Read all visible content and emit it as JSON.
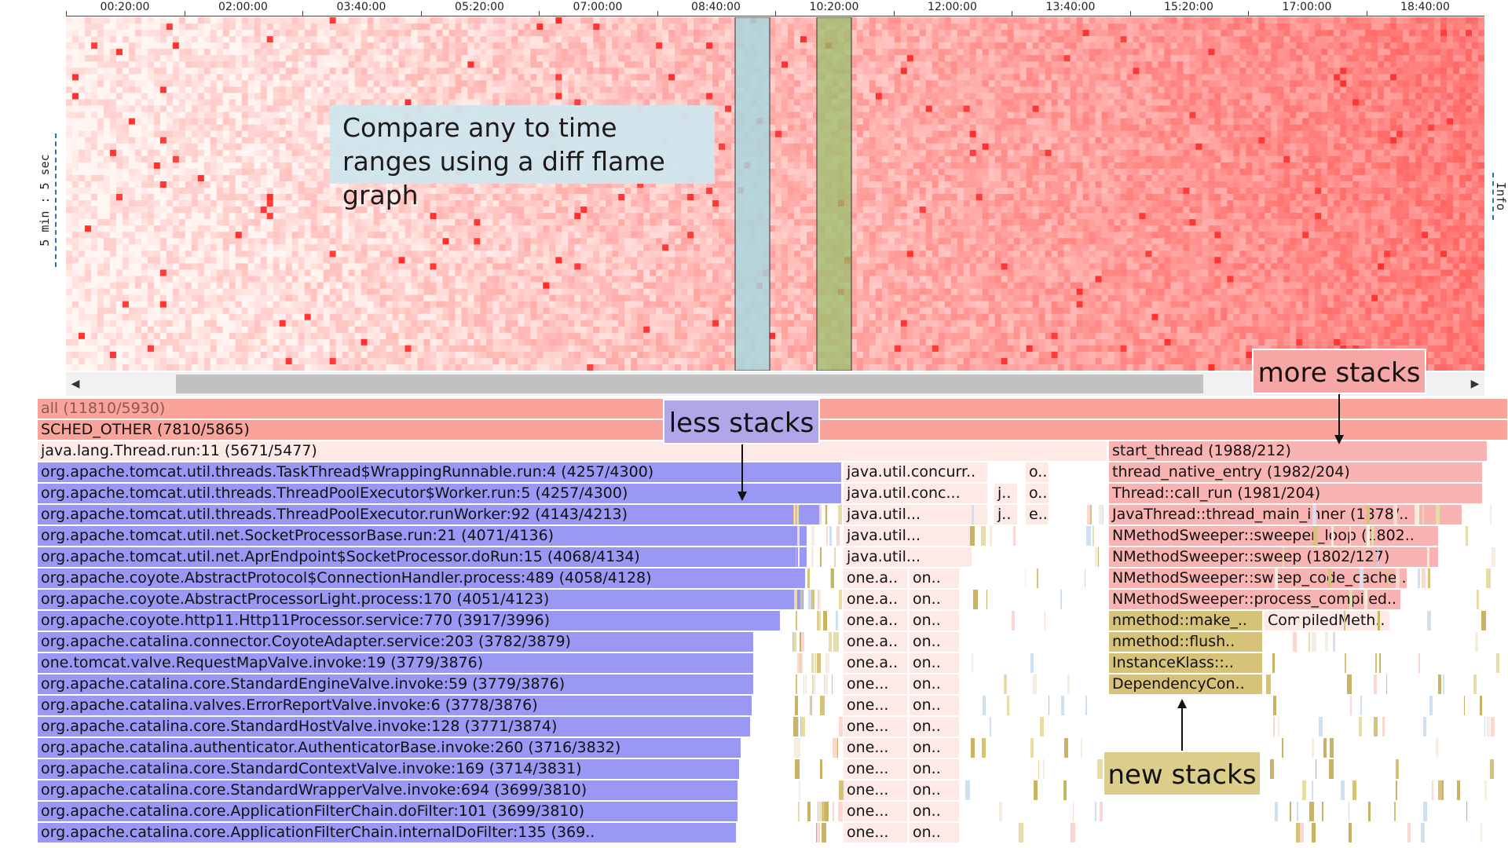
{
  "time_axis": {
    "ticks": [
      "00:20:00",
      "02:00:00",
      "03:40:00",
      "05:20:00",
      "07:00:00",
      "08:40:00",
      "10:20:00",
      "12:00:00",
      "13:40:00",
      "15:20:00",
      "17:00:00",
      "18:40:00"
    ]
  },
  "heatmap": {
    "y_label": "5 min : 5 sec",
    "info_tab": "Info"
  },
  "callouts": {
    "compare": "Compare any to time ranges using a diff flame graph",
    "less": "less stacks",
    "more": "more stacks",
    "new": "new stacks"
  },
  "colors": {
    "less_stacks": "#9a98f5",
    "more_stacks": "#f9b3b3",
    "new_stacks": "#d7c27a",
    "root": "#f9a39b",
    "neutral": "#fde9e6",
    "selection_a": "#a9d7de",
    "selection_b": "#98c26d"
  },
  "flame": {
    "frames": [
      "all (11810/5930)",
      "SCHED_OTHER (7810/5865)",
      "java.lang.Thread.run:11 (5671/5477)",
      "start_thread (1988/212)",
      "org.apache.tomcat.util.threads.TaskThread$WrappingRunnable.run:4 (4257/4300)",
      "java.util.concurr..",
      "o..",
      "thread_native_entry (1982/204)",
      "org.apache.tomcat.util.threads.ThreadPoolExecutor$Worker.run:5 (4257/4300)",
      "java.util.conc...",
      "j..",
      "o..",
      "Thread::call_run (1981/204)",
      "org.apache.tomcat.util.threads.ThreadPoolExecutor.runWorker:92 (4143/4213)",
      "java.util...",
      "j..",
      "e..",
      "JavaThread::thread_main_inner (1878/..",
      "org.apache.tomcat.util.net.SocketProcessorBase.run:21 (4071/4136)",
      "java.util...",
      "NMethodSweeper::sweeper_loop (1802..",
      "org.apache.tomcat.util.net.AprEndpoint$SocketProcessor.doRun:15 (4068/4134)",
      "java.util...",
      "NMethodSweeper::sweep (1802/127)",
      "org.apache.coyote.AbstractProtocol$ConnectionHandler.process:489 (4058/4128)",
      "one.a..",
      "on..",
      "NMethodSweeper::sweep_code_cache ..",
      "org.apache.coyote.AbstractProcessorLight.process:170 (4051/4123)",
      "one.a..",
      "on..",
      "NMethodSweeper::process_compiled..",
      "org.apache.coyote.http11.Http11Processor.service:770 (3917/3996)",
      "one.a..",
      "on..",
      "nmethod::make_..",
      "CompiledMeth..",
      "org.apache.catalina.connector.CoyoteAdapter.service:203 (3782/3879)",
      "one.a..",
      "on..",
      "nmethod::flush..",
      "one.tomcat.valve.RequestMapValve.invoke:19 (3779/3876)",
      "one.a..",
      "on..",
      "InstanceKlass::..",
      "org.apache.catalina.core.StandardEngineValve.invoke:59 (3779/3876)",
      "one...",
      "on..",
      "DependencyCon..",
      "org.apache.catalina.valves.ErrorReportValve.invoke:6 (3778/3876)",
      "one...",
      "on..",
      "org.apache.catalina.core.StandardHostValve.invoke:128 (3771/3874)",
      "one...",
      "on..",
      "org.apache.catalina.authenticator.AuthenticatorBase.invoke:260 (3716/3832)",
      "one...",
      "on..",
      "org.apache.catalina.core.StandardContextValve.invoke:169 (3714/3831)",
      "one...",
      "on..",
      "org.apache.catalina.core.StandardWrapperValve.invoke:694 (3699/3810)",
      "one...",
      "on..",
      "org.apache.catalina.core.ApplicationFilterChain.doFilter:101 (3699/3810)",
      "one...",
      "on..",
      "org.apache.catalina.core.ApplicationFilterChain.internalDoFilter:135 (369..",
      "one...",
      "on.."
    ]
  }
}
